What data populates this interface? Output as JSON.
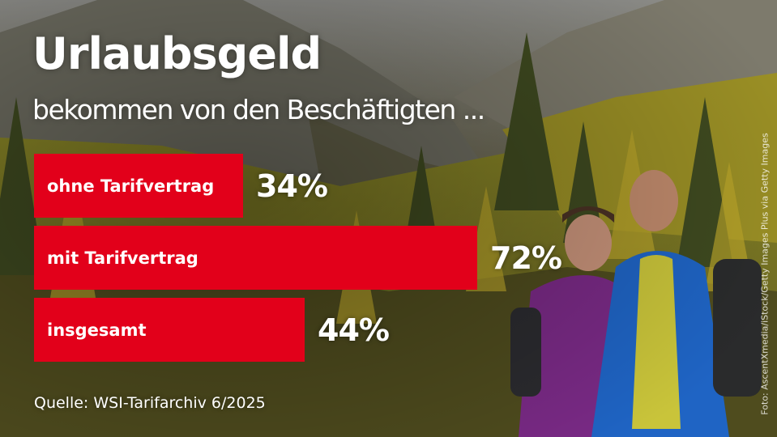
{
  "title": "Urlaubsgeld",
  "subtitle": "bekommen von den Beschäftigten ...",
  "source": "Quelle: WSI-Tarifarchiv 6/2025",
  "photo_credit": "Foto: AscentXmedia/iStock/Getty Images Plus via Getty Images",
  "colors": {
    "bar": "#e2001a",
    "text": "#ffffff"
  },
  "chart_data": {
    "type": "bar",
    "orientation": "horizontal",
    "categories": [
      "ohne Tarifvertrag",
      "mit Tarifvertrag",
      "insgesamt"
    ],
    "values": [
      34,
      72,
      44
    ],
    "value_labels": [
      "34%",
      "72%",
      "44%"
    ],
    "unit": "%",
    "title": "Urlaubsgeld",
    "subtitle": "bekommen von den Beschäftigten ...",
    "grid": false,
    "legend": "none"
  }
}
